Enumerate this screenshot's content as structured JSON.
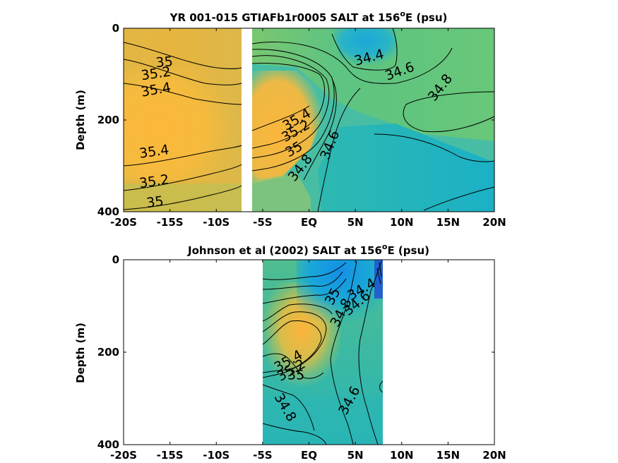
{
  "chart_data": [
    {
      "type": "heatmap",
      "title": "YR 001-015 GTIAFb1r0005 SALT at 156",
      "title_degree": "o",
      "title_suffix": "E (psu)",
      "xlabel": "",
      "ylabel": "Depth (m)",
      "x_tick_labels": [
        "-20S",
        "-15S",
        "-10S",
        "-5S",
        "EQ",
        "5N",
        "10N",
        "15N",
        "20N"
      ],
      "x_ticks": [
        -20,
        -15,
        -10,
        -5,
        0,
        5,
        10,
        15,
        20
      ],
      "y_tick_labels": [
        "0",
        "200",
        "400"
      ],
      "y_ticks": [
        0,
        200,
        400
      ],
      "xlim": [
        -20,
        20
      ],
      "ylim": [
        400,
        0
      ],
      "data_gap_lat": [
        -7.4,
        -6.6
      ],
      "contour_levels": [
        34.4,
        34.6,
        34.8,
        35,
        35.2,
        35.4
      ],
      "contour_labels": [
        {
          "text": "35",
          "lat": -15.6,
          "depth": 75,
          "rot": -5
        },
        {
          "text": "35.2",
          "lat": -16.5,
          "depth": 100,
          "rot": -8
        },
        {
          "text": "35.4",
          "lat": -16.5,
          "depth": 135,
          "rot": -10
        },
        {
          "text": "35.4",
          "lat": -16.7,
          "depth": 270,
          "rot": -8
        },
        {
          "text": "35.2",
          "lat": -16.7,
          "depth": 335,
          "rot": -8
        },
        {
          "text": "35",
          "lat": -16.6,
          "depth": 380,
          "rot": -8
        },
        {
          "text": "35.4",
          "lat": -1.3,
          "depth": 200,
          "rot": -30
        },
        {
          "text": "35.2",
          "lat": -1.4,
          "depth": 225,
          "rot": -30
        },
        {
          "text": "35",
          "lat": -1.6,
          "depth": 265,
          "rot": -30
        },
        {
          "text": "34.8",
          "lat": -0.9,
          "depth": 305,
          "rot": -52
        },
        {
          "text": "34.6",
          "lat": 2.3,
          "depth": 255,
          "rot": -68
        },
        {
          "text": "34.4",
          "lat": 6.5,
          "depth": 65,
          "rot": -15
        },
        {
          "text": "34.6",
          "lat": 9.8,
          "depth": 95,
          "rot": -20
        },
        {
          "text": "34.8",
          "lat": 14.2,
          "depth": 130,
          "rot": -52
        }
      ]
    },
    {
      "type": "heatmap",
      "title": "Johnson et al (2002) SALT at 156",
      "title_degree": "o",
      "title_suffix": "E (psu)",
      "xlabel": "",
      "ylabel": "Depth (m)",
      "x_tick_labels": [
        "-20S",
        "-15S",
        "-10S",
        "-5S",
        "EQ",
        "5N",
        "10N",
        "15N",
        "20N"
      ],
      "x_ticks": [
        -20,
        -15,
        -10,
        -5,
        0,
        5,
        10,
        15,
        20
      ],
      "y_tick_labels": [
        "0",
        "200",
        "400"
      ],
      "y_ticks": [
        0,
        200,
        400
      ],
      "xlim": [
        -20,
        20
      ],
      "ylim": [
        400,
        0
      ],
      "data_lat_range": [
        -5,
        8
      ],
      "contour_levels": [
        34.4,
        34.6,
        34.8,
        35,
        35.2,
        35.4
      ],
      "contour_labels": [
        {
          "text": "34.4",
          "lat": 5.7,
          "depth": 65,
          "rot": -30
        },
        {
          "text": "34.6",
          "lat": 5.2,
          "depth": 95,
          "rot": -40
        },
        {
          "text": "34.8",
          "lat": 3.5,
          "depth": 115,
          "rot": -62
        },
        {
          "text": "35",
          "lat": 2.6,
          "depth": 80,
          "rot": -62
        },
        {
          "text": "35.4",
          "lat": -2.2,
          "depth": 220,
          "rot": -30
        },
        {
          "text": "35.2",
          "lat": -1.9,
          "depth": 240,
          "rot": -30
        },
        {
          "text": "35",
          "lat": -1.4,
          "depth": 250,
          "rot": 0
        },
        {
          "text": "34.6",
          "lat": 4.4,
          "depth": 305,
          "rot": -62
        },
        {
          "text": "34.8",
          "lat": -2.6,
          "depth": 320,
          "rot": 60
        }
      ]
    }
  ]
}
